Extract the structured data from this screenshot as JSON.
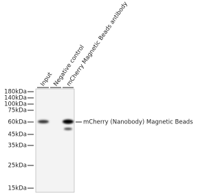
{
  "lanes": [
    "Input",
    "Negative control",
    "mCherry Magnetic Beads antibody"
  ],
  "markers": [
    "180kDa",
    "140kDa",
    "100kDa",
    "75kDa",
    "60kDa",
    "45kDa",
    "35kDa",
    "25kDa",
    "15kDa"
  ],
  "annotation": "mCherry (Nanobody) Magnetic Beads"
}
